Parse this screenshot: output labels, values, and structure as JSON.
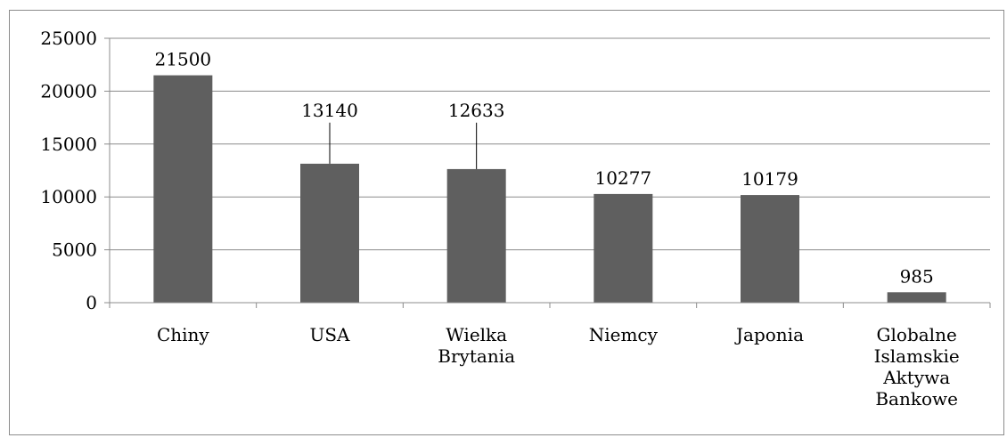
{
  "chart_data": {
    "type": "bar",
    "title": "",
    "xlabel": "",
    "ylabel": "",
    "categories": [
      "Chiny",
      "USA",
      "Wielka Brytania",
      "Niemcy",
      "Japonia",
      "Globalne Islamskie Aktywa Bankowe"
    ],
    "category_lines": [
      [
        "Chiny"
      ],
      [
        "USA"
      ],
      [
        "Wielka",
        "Brytania"
      ],
      [
        "Niemcy"
      ],
      [
        "Japonia"
      ],
      [
        "Globalne",
        "Islamskie",
        "Aktywa",
        "Bankowe"
      ]
    ],
    "values": [
      21500,
      13140,
      12633,
      10277,
      10179,
      985
    ],
    "data_labels": [
      "21500",
      "13140",
      "12633",
      "10277",
      "10179",
      "985"
    ],
    "ylim": [
      0,
      25000
    ],
    "y_ticks": [
      0,
      5000,
      10000,
      15000,
      20000,
      25000
    ],
    "y_tick_labels": [
      "0",
      "5000",
      "10000",
      "15000",
      "20000",
      "25000"
    ],
    "grid": true,
    "legend": "none",
    "colors": {
      "bar": "#5f5f5f",
      "grid": "#8c8c8c",
      "axis": "#8c8c8c",
      "frame": "#8c8c8c"
    }
  }
}
